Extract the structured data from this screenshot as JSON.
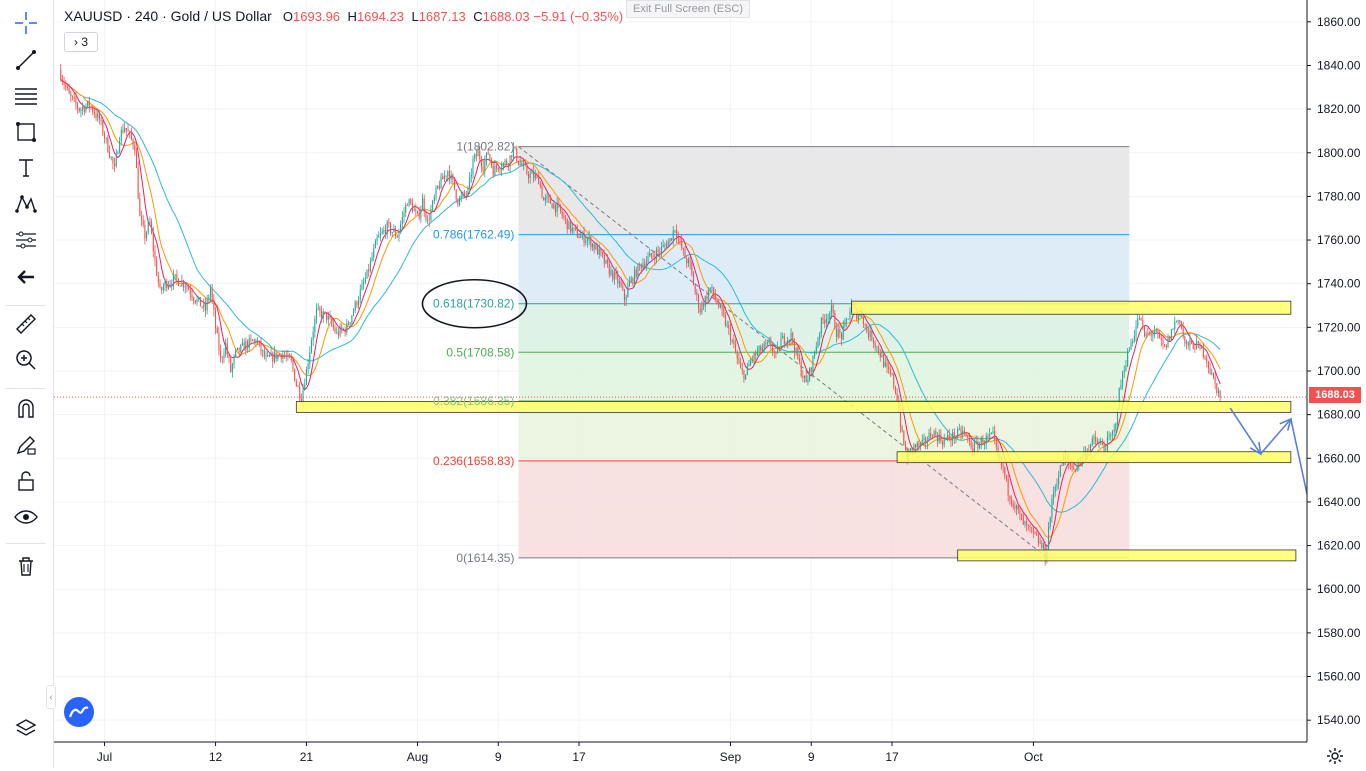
{
  "legend": {
    "symbol": "XAUUSD",
    "interval": "240",
    "name": "Gold / US Dollar",
    "open_label": "O",
    "open": "1693.96",
    "high_label": "H",
    "high": "1694.23",
    "low_label": "L",
    "low": "1687.13",
    "close_label": "C",
    "close": "1688.03",
    "change": "−5.91 (−0.35%)",
    "indicator_toggle": "3",
    "indicator_chevron": "›"
  },
  "exit_fullscreen": "Exit Full Screen (ESC)",
  "last_price": "1688.03",
  "colors": {
    "up": "#26a69a",
    "down": "#ef5350",
    "ma_fast": "#e91e63",
    "ma_mid": "#ff9800",
    "ma_slow": "#2bbcd4",
    "zone": "#ffff66",
    "arrow": "#5b7fd6"
  },
  "toolbar": {
    "icons": [
      "crosshair-icon",
      "trend-line-icon",
      "fib-icon",
      "rectangle-icon",
      "text-icon",
      "pattern-icon",
      "forecast-icon",
      "back-arrow-icon",
      "ruler-icon",
      "zoom-in-icon",
      "magnet-icon",
      "lock-drawing-icon",
      "unlock-icon",
      "eye-icon",
      "trash-icon",
      "layers-icon"
    ]
  },
  "chart_data": {
    "type": "candlestick",
    "symbol": "XAUUSD",
    "timeframe": "240",
    "ylim": [
      1530,
      1870
    ],
    "y_ticks": [
      "1860.00",
      "1840.00",
      "1820.00",
      "1800.00",
      "1780.00",
      "1760.00",
      "1740.00",
      "1720.00",
      "1700.00",
      "1680.00",
      "1660.00",
      "1640.00",
      "1620.00",
      "1600.00",
      "1580.00",
      "1560.00",
      "1540.00"
    ],
    "x_ticks": [
      {
        "label": "Jul",
        "day": 0
      },
      {
        "label": "12",
        "day": 11
      },
      {
        "label": "21",
        "day": 20
      },
      {
        "label": "Aug",
        "day": 31
      },
      {
        "label": "9",
        "day": 39
      },
      {
        "label": "17",
        "day": 47
      },
      {
        "label": "Sep",
        "day": 62
      },
      {
        "label": "9",
        "day": 70
      },
      {
        "label": "17",
        "day": 78
      },
      {
        "label": "Oct",
        "day": 92
      }
    ],
    "xlim_days": [
      -5,
      119
    ],
    "price_path": [
      [
        -4.5,
        1838
      ],
      [
        -3.5,
        1826
      ],
      [
        -2.5,
        1820
      ],
      [
        -1.5,
        1822
      ],
      [
        -0.5,
        1815
      ],
      [
        0.5,
        1800
      ],
      [
        1.0,
        1792
      ],
      [
        1.5,
        1808
      ],
      [
        2.0,
        1812
      ],
      [
        3.0,
        1803
      ],
      [
        3.5,
        1770
      ],
      [
        4.0,
        1762
      ],
      [
        4.5,
        1768
      ],
      [
        5.0,
        1750
      ],
      [
        5.5,
        1736
      ],
      [
        6.0,
        1740
      ],
      [
        7.0,
        1742
      ],
      [
        8.0,
        1740
      ],
      [
        9.0,
        1733
      ],
      [
        10.0,
        1728
      ],
      [
        10.5,
        1738
      ],
      [
        11.0,
        1720
      ],
      [
        11.5,
        1705
      ],
      [
        12.0,
        1712
      ],
      [
        12.5,
        1700
      ],
      [
        13.0,
        1708
      ],
      [
        14.0,
        1712
      ],
      [
        15.0,
        1714
      ],
      [
        16.0,
        1705
      ],
      [
        17.5,
        1708
      ],
      [
        18.5,
        1704
      ],
      [
        19.0,
        1694
      ],
      [
        19.5,
        1688
      ],
      [
        20.0,
        1700
      ],
      [
        20.5,
        1715
      ],
      [
        21.0,
        1727
      ],
      [
        22.0,
        1725
      ],
      [
        23.0,
        1717
      ],
      [
        24.0,
        1720
      ],
      [
        25.0,
        1732
      ],
      [
        26.0,
        1744
      ],
      [
        27.0,
        1760
      ],
      [
        28.0,
        1766
      ],
      [
        29.0,
        1762
      ],
      [
        30.0,
        1778
      ],
      [
        30.5,
        1775
      ],
      [
        31.0,
        1770
      ],
      [
        31.5,
        1778
      ],
      [
        32.0,
        1768
      ],
      [
        33.0,
        1784
      ],
      [
        34.0,
        1792
      ],
      [
        34.5,
        1786
      ],
      [
        35.0,
        1778
      ],
      [
        36.0,
        1782
      ],
      [
        36.5,
        1796
      ],
      [
        37.0,
        1800
      ],
      [
        37.5,
        1794
      ],
      [
        38.0,
        1800
      ],
      [
        38.5,
        1792
      ],
      [
        39.0,
        1794
      ],
      [
        40.0,
        1796
      ],
      [
        40.5,
        1802
      ],
      [
        41.0,
        1796
      ],
      [
        42.0,
        1790
      ],
      [
        43.0,
        1788
      ],
      [
        43.5,
        1778
      ],
      [
        44.0,
        1778
      ],
      [
        45.0,
        1774
      ],
      [
        46.0,
        1766
      ],
      [
        47.0,
        1762
      ],
      [
        48.0,
        1760
      ],
      [
        49.0,
        1754
      ],
      [
        50.0,
        1746
      ],
      [
        51.0,
        1740
      ],
      [
        51.5,
        1733
      ],
      [
        52.0,
        1740
      ],
      [
        53.0,
        1748
      ],
      [
        54.0,
        1752
      ],
      [
        55.0,
        1755
      ],
      [
        56.0,
        1760
      ],
      [
        56.5,
        1766
      ],
      [
        57.0,
        1758
      ],
      [
        57.5,
        1752
      ],
      [
        58.0,
        1748
      ],
      [
        58.5,
        1736
      ],
      [
        59.0,
        1728
      ],
      [
        60.0,
        1738
      ],
      [
        61.0,
        1728
      ],
      [
        61.5,
        1722
      ],
      [
        62.0,
        1716
      ],
      [
        63.0,
        1700
      ],
      [
        63.5,
        1698
      ],
      [
        64.0,
        1705
      ],
      [
        65.0,
        1710
      ],
      [
        66.0,
        1712
      ],
      [
        66.5,
        1706
      ],
      [
        67.0,
        1714
      ],
      [
        68.0,
        1716
      ],
      [
        69.0,
        1700
      ],
      [
        69.5,
        1694
      ],
      [
        70.0,
        1702
      ],
      [
        70.5,
        1712
      ],
      [
        71.0,
        1722
      ],
      [
        72.0,
        1728
      ],
      [
        72.5,
        1718
      ],
      [
        73.0,
        1716
      ],
      [
        74.0,
        1730
      ],
      [
        74.5,
        1726
      ],
      [
        75.0,
        1726
      ],
      [
        75.5,
        1718
      ],
      [
        76.0,
        1716
      ],
      [
        77.0,
        1706
      ],
      [
        77.5,
        1700
      ],
      [
        78.0,
        1697
      ],
      [
        78.5,
        1688
      ],
      [
        79.0,
        1670
      ],
      [
        79.5,
        1660
      ],
      [
        80.0,
        1665
      ],
      [
        81.0,
        1666
      ],
      [
        82.0,
        1672
      ],
      [
        83.0,
        1668
      ],
      [
        84.0,
        1670
      ],
      [
        85.0,
        1672
      ],
      [
        86.0,
        1665
      ],
      [
        87.0,
        1668
      ],
      [
        88.0,
        1670
      ],
      [
        88.5,
        1660
      ],
      [
        89.0,
        1655
      ],
      [
        89.5,
        1645
      ],
      [
        90.0,
        1640
      ],
      [
        91.0,
        1630
      ],
      [
        92.0,
        1625
      ],
      [
        92.5,
        1622
      ],
      [
        93.0,
        1618
      ],
      [
        93.2,
        1614
      ],
      [
        93.5,
        1628
      ],
      [
        94.0,
        1645
      ],
      [
        95.0,
        1660
      ],
      [
        96.0,
        1655
      ],
      [
        97.0,
        1662
      ],
      [
        98.0,
        1668
      ],
      [
        99.0,
        1665
      ],
      [
        100.0,
        1672
      ],
      [
        100.5,
        1690
      ],
      [
        101.0,
        1702
      ],
      [
        102.0,
        1718
      ],
      [
        102.5,
        1725
      ],
      [
        103.0,
        1716
      ],
      [
        104.0,
        1718
      ],
      [
        105.0,
        1710
      ],
      [
        106.0,
        1722
      ],
      [
        106.5,
        1724
      ],
      [
        107.0,
        1712
      ],
      [
        108.0,
        1712
      ],
      [
        109.0,
        1708
      ],
      [
        109.5,
        1700
      ],
      [
        110.0,
        1694
      ],
      [
        110.5,
        1688
      ]
    ],
    "fib_retracement": {
      "levels": [
        {
          "ratio": "1",
          "label": "1(1802.82)",
          "price": 1802.82,
          "color": "#787b86",
          "fill": "#e4e4e4"
        },
        {
          "ratio": "0.786",
          "label": "0.786(1762.49)",
          "price": 1762.49,
          "color": "#2196f3",
          "fill": "#d8e9f7"
        },
        {
          "ratio": "0.618",
          "label": "0.618(1730.82)",
          "price": 1730.82,
          "color": "#26a69a",
          "fill": "#d8f0e4"
        },
        {
          "ratio": "0.5",
          "label": "0.5(1708.58)",
          "price": 1708.58,
          "color": "#4caf50",
          "fill": "#def3de"
        },
        {
          "ratio": "0.382",
          "label": "0.382(1686.35)",
          "price": 1686.35,
          "color": "#81c784",
          "fill": "#e8f3dd"
        },
        {
          "ratio": "0.236",
          "label": "0.236(1658.83)",
          "price": 1658.83,
          "color": "#f44336",
          "fill": "#f6dcdc"
        },
        {
          "ratio": "0",
          "label": "0(1614.35)",
          "price": 1614.35,
          "color": "#787b86",
          "fill": null
        }
      ],
      "start_day": 41.0,
      "end_day": 101.5,
      "trend_line": {
        "from": [
          41.0,
          1802.82
        ],
        "to": [
          93.4,
          1614.35
        ]
      }
    },
    "zones": [
      {
        "name": "zone-1730",
        "from_day": 74.0,
        "to_day": 117.5,
        "low": 1726,
        "high": 1732
      },
      {
        "name": "zone-1686",
        "from_day": 19.0,
        "to_day": 117.5,
        "low": 1681,
        "high": 1686
      },
      {
        "name": "zone-1660",
        "from_day": 78.5,
        "to_day": 117.5,
        "low": 1658,
        "high": 1663
      },
      {
        "name": "zone-1614",
        "from_day": 84.5,
        "to_day": 118.0,
        "low": 1613,
        "high": 1618
      }
    ],
    "projection_path": [
      [
        111.5,
        1683
      ],
      [
        114.5,
        1662
      ],
      [
        117.5,
        1678
      ],
      [
        120.2,
        1620
      ]
    ],
    "highlight_label": "0.618(1730.82)",
    "last_price": 1688.03
  }
}
